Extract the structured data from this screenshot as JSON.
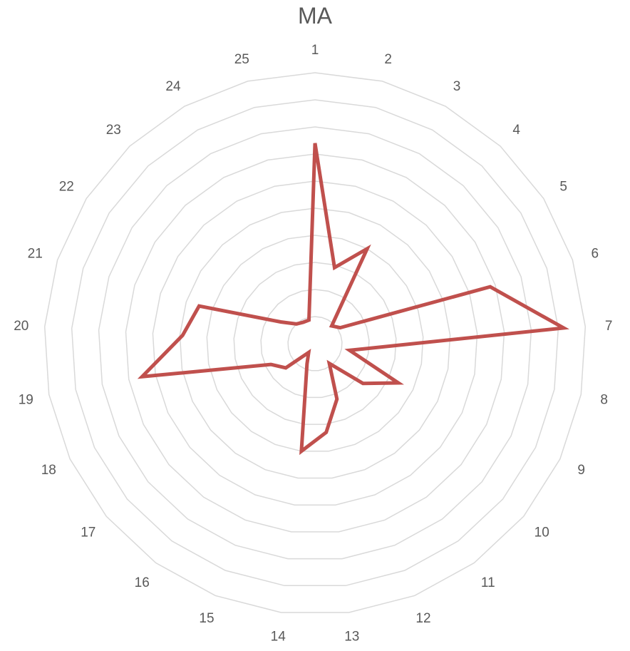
{
  "chart_data": {
    "type": "radar",
    "title": "MA",
    "categories": [
      "1",
      "2",
      "3",
      "4",
      "5",
      "6",
      "7",
      "8",
      "9",
      "10",
      "11",
      "12",
      "13",
      "14",
      "15",
      "16",
      "17",
      "18",
      "19",
      "20",
      "21",
      "22",
      "23",
      "24",
      "25"
    ],
    "series": [
      {
        "values": [
          7.4,
          2.9,
          4.0,
          0.9,
          1.1,
          6.8,
          9.2,
          1.3,
          3.4,
          2.3,
          0.9,
          2.2,
          3.3,
          4.0,
          0.8,
          0.4,
          1.4,
          1.8,
          6.5,
          4.9,
          4.5,
          1.5,
          1.0,
          0.9,
          0.9
        ],
        "color": "#C0504D"
      }
    ],
    "rmin": 0,
    "rmax": 10,
    "grid_rings": 10,
    "grid": true,
    "legend": "none",
    "colors": {
      "grid": "#D9D9D9",
      "series": "#C0504D",
      "text": "#595959"
    }
  }
}
